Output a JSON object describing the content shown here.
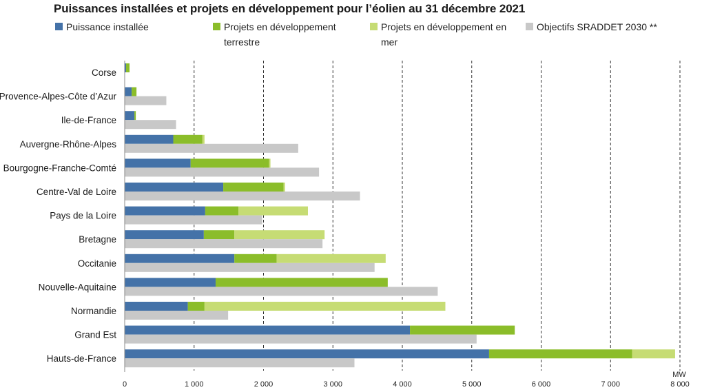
{
  "chart_data": {
    "type": "bar",
    "orientation": "horizontal",
    "stacked": true,
    "title": "Puissances installées et projets en développement pour l’éolien au 31 décembre 2021",
    "unit_label": "MW",
    "xlim": [
      0,
      8000
    ],
    "xticks": [
      0,
      1000,
      2000,
      3000,
      4000,
      5000,
      6000,
      7000,
      8000
    ],
    "xtick_labels": [
      "0",
      "1 000",
      "2 000",
      "3 000",
      "4 000",
      "5 000",
      "6 000",
      "7 000",
      "8 000"
    ],
    "grid": "vertical dashed",
    "legend_position": "top",
    "categories": [
      "Corse",
      "Provence-Alpes-Côte d’Azur",
      "Ile-de-France",
      "Auvergne-Rhône-Alpes",
      "Bourgogne-Franche-Comté",
      "Centre-Val de Loire",
      "Pays de la Loire",
      "Bretagne",
      "Occitanie",
      "Nouvelle-Aquitaine",
      "Normandie",
      "Grand Est",
      "Hauts-de-France"
    ],
    "series": [
      {
        "name": "Puissance installée",
        "color": "#4472a8",
        "stack": "a",
        "values": [
          20,
          100,
          140,
          700,
          950,
          1420,
          1160,
          1140,
          1580,
          1310,
          910,
          4110,
          5250
        ]
      },
      {
        "name": "Projets en développement terrestre",
        "color": "#8bbd2a",
        "stack": "a",
        "values": [
          50,
          70,
          20,
          420,
          1130,
          870,
          480,
          440,
          610,
          2480,
          240,
          1510,
          2060
        ]
      },
      {
        "name": "Projets en développement en mer",
        "color": "#c6dc74",
        "stack": "a",
        "values": [
          0,
          0,
          0,
          30,
          20,
          20,
          1000,
          1300,
          1570,
          0,
          3470,
          0,
          620
        ]
      },
      {
        "name": "Objectifs SRADDET 2030 **",
        "color": "#c8c8c8",
        "stack": "b",
        "values": [
          0,
          600,
          740,
          2500,
          2800,
          3390,
          1980,
          2850,
          3600,
          4510,
          1490,
          5070,
          3310
        ]
      }
    ]
  }
}
